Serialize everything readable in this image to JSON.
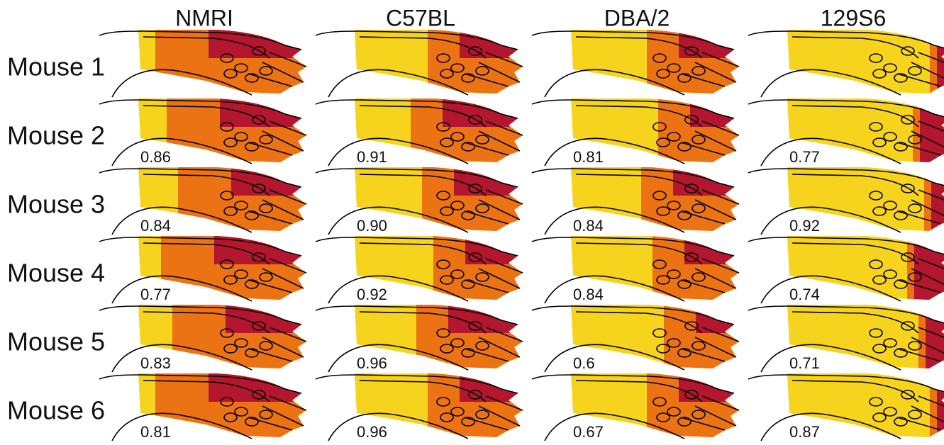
{
  "columns": [
    "NMRI",
    "C57BL",
    "DBA/2",
    "129S6"
  ],
  "rows": [
    {
      "label": "Mouse 1"
    },
    {
      "label": "Mouse 2",
      "scores": [
        "0.86",
        "0.91",
        "0.81",
        "0.77"
      ]
    },
    {
      "label": "Mouse 3",
      "scores": [
        "0.84",
        "0.90",
        "0.84",
        "0.92"
      ]
    },
    {
      "label": "Mouse 4",
      "scores": [
        "0.77",
        "0.92",
        "0.84",
        "0.74"
      ]
    },
    {
      "label": "Mouse 5",
      "scores": [
        "0.83",
        "0.96",
        "0.6",
        "0.71"
      ]
    },
    {
      "label": "Mouse 6",
      "scores": [
        "0.81",
        "0.96",
        "0.67",
        "0.87"
      ]
    }
  ]
}
